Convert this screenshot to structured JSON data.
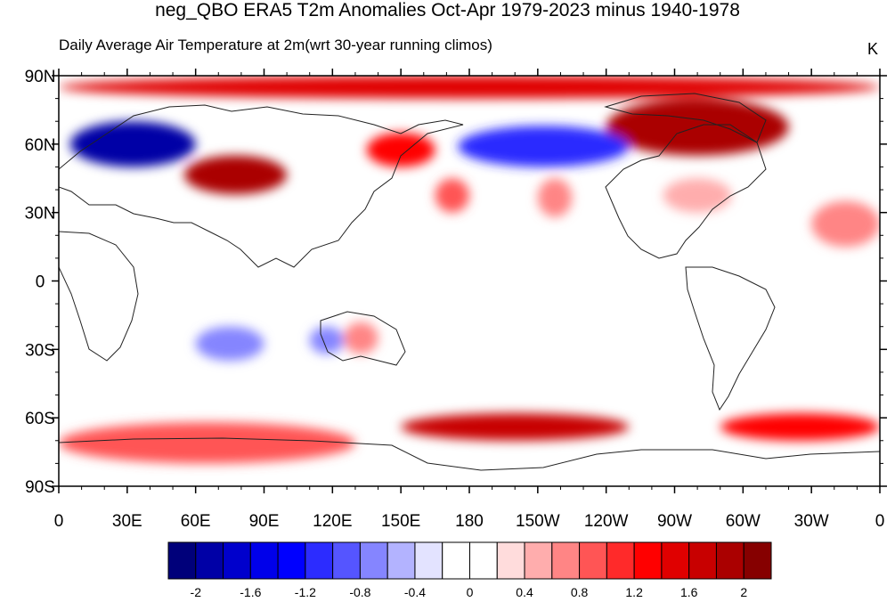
{
  "title": "neg_QBO ERA5 T2m Anomalies Oct-Apr 1979-2023 minus 1940-1978",
  "subtitle": "Daily Average Air Temperature at 2m(wrt 30-year running climos)",
  "units": "K",
  "colors": {
    "levels": [
      "#00007a",
      "#0000a6",
      "#0000cc",
      "#0000ea",
      "#0000ff",
      "#2c2cff",
      "#5555ff",
      "#8585ff",
      "#b3b3ff",
      "#e3e3ff",
      "#ffffff",
      "#ffffff",
      "#ffdcdc",
      "#ffadad",
      "#ff8585",
      "#ff5555",
      "#ff2a2a",
      "#ff0000",
      "#e00000",
      "#c80000",
      "#aa0000",
      "#860000"
    ]
  },
  "chart_data": {
    "type": "heatmap",
    "projection": "cylindrical-equidistant, centered on 180",
    "title": "neg_QBO ERA5 T2m Anomalies Oct-Apr 1979-2023 minus 1940-1978",
    "subtitle": "Daily Average Air Temperature at 2m(wrt 30-year running climos)",
    "units": "K",
    "lon_range": [
      0,
      360
    ],
    "lat_range": [
      -90,
      90
    ],
    "x_tick_labels": [
      "0",
      "30E",
      "60E",
      "90E",
      "120E",
      "150E",
      "180",
      "150W",
      "120W",
      "90W",
      "60W",
      "30W",
      "0"
    ],
    "y_tick_labels": [
      "90N",
      "60N",
      "30N",
      "0",
      "30S",
      "60S",
      "90S"
    ],
    "colorbar": {
      "range": [
        -2.2,
        2.2
      ],
      "step": 0.2,
      "tick_labels": [
        "-2",
        "-1.6",
        "-1.2",
        "-0.8",
        "-0.4",
        "0",
        "0.4",
        "0.8",
        "1.2",
        "1.6",
        "2"
      ]
    },
    "anomaly_regions": [
      {
        "lon": [
          0,
          360
        ],
        "lat": [
          80,
          90
        ],
        "value": 1.4
      },
      {
        "lon": [
          240,
          320
        ],
        "lat": [
          55,
          80
        ],
        "value": 1.8
      },
      {
        "lon": [
          5,
          60
        ],
        "lat": [
          50,
          70
        ],
        "value": -2.0
      },
      {
        "lon": [
          55,
          100
        ],
        "lat": [
          38,
          55
        ],
        "value": 1.8
      },
      {
        "lon": [
          135,
          165
        ],
        "lat": [
          50,
          65
        ],
        "value": 1.2
      },
      {
        "lon": [
          165,
          180
        ],
        "lat": [
          30,
          45
        ],
        "value": 0.8
      },
      {
        "lon": [
          175,
          250
        ],
        "lat": [
          50,
          68
        ],
        "value": -1.2
      },
      {
        "lon": [
          210,
          225
        ],
        "lat": [
          28,
          45
        ],
        "value": 0.6
      },
      {
        "lon": [
          265,
          295
        ],
        "lat": [
          30,
          45
        ],
        "value": 0.4
      },
      {
        "lon": [
          330,
          360
        ],
        "lat": [
          15,
          35
        ],
        "value": 0.6
      },
      {
        "lon": [
          60,
          90
        ],
        "lat": [
          -35,
          -20
        ],
        "value": -0.8
      },
      {
        "lon": [
          110,
          125
        ],
        "lat": [
          -32,
          -20
        ],
        "value": -0.8
      },
      {
        "lon": [
          125,
          140
        ],
        "lat": [
          -32,
          -18
        ],
        "value": 0.6
      },
      {
        "lon": [
          150,
          250
        ],
        "lat": [
          -70,
          -58
        ],
        "value": 1.6
      },
      {
        "lon": [
          290,
          360
        ],
        "lat": [
          -70,
          -58
        ],
        "value": 1.2
      },
      {
        "lon": [
          0,
          130
        ],
        "lat": [
          -80,
          -62
        ],
        "value": 0.8
      }
    ]
  }
}
